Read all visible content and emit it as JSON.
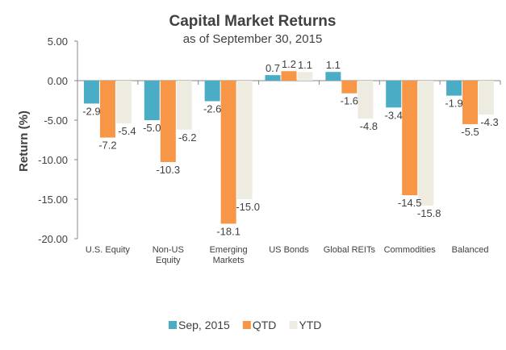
{
  "chart_data": {
    "type": "bar",
    "title": "Capital Market Returns",
    "subtitle": "as of September  30, 2015",
    "xlabel": "",
    "ylabel": "Return (%)",
    "ylim": [
      -20,
      5
    ],
    "yticks": [
      5,
      0,
      -5,
      -10,
      -15,
      -20
    ],
    "ytick_labels": [
      "5.00",
      "0.00",
      "-5.00",
      "-10.00",
      "-15.00",
      "-20.00"
    ],
    "grid": false,
    "legend_position": "bottom",
    "categories": [
      [
        "U.S. Equity"
      ],
      [
        "Non-US",
        "Equity"
      ],
      [
        "Emerging",
        "Markets"
      ],
      [
        "US Bonds"
      ],
      [
        "Global REITs"
      ],
      [
        "Commodities"
      ],
      [
        "Balanced"
      ]
    ],
    "series": [
      {
        "name": "Sep, 2015",
        "color": "#4BACC6",
        "values": [
          -2.9,
          -5.0,
          -2.6,
          0.7,
          1.1,
          -3.4,
          -1.9
        ],
        "labels": [
          "-2.9",
          "-5.0",
          "-2.6",
          "0.7",
          "1.1",
          "-3.4",
          "-1.9"
        ]
      },
      {
        "name": "QTD",
        "color": "#F79646",
        "values": [
          -7.2,
          -10.3,
          -18.1,
          1.2,
          -1.6,
          -14.5,
          -5.5
        ],
        "labels": [
          "-7.2",
          "-10.3",
          "-18.1",
          "1.2",
          "-1.6",
          "-14.5",
          "-5.5"
        ]
      },
      {
        "name": "YTD",
        "color": "#EEECE1",
        "values": [
          -5.4,
          -6.2,
          -15.0,
          1.1,
          -4.8,
          -15.8,
          -4.3
        ],
        "labels": [
          "-5.4",
          "-6.2",
          "-15.0",
          "1.1",
          "-4.8",
          "-15.8",
          "-4.3"
        ]
      }
    ]
  }
}
